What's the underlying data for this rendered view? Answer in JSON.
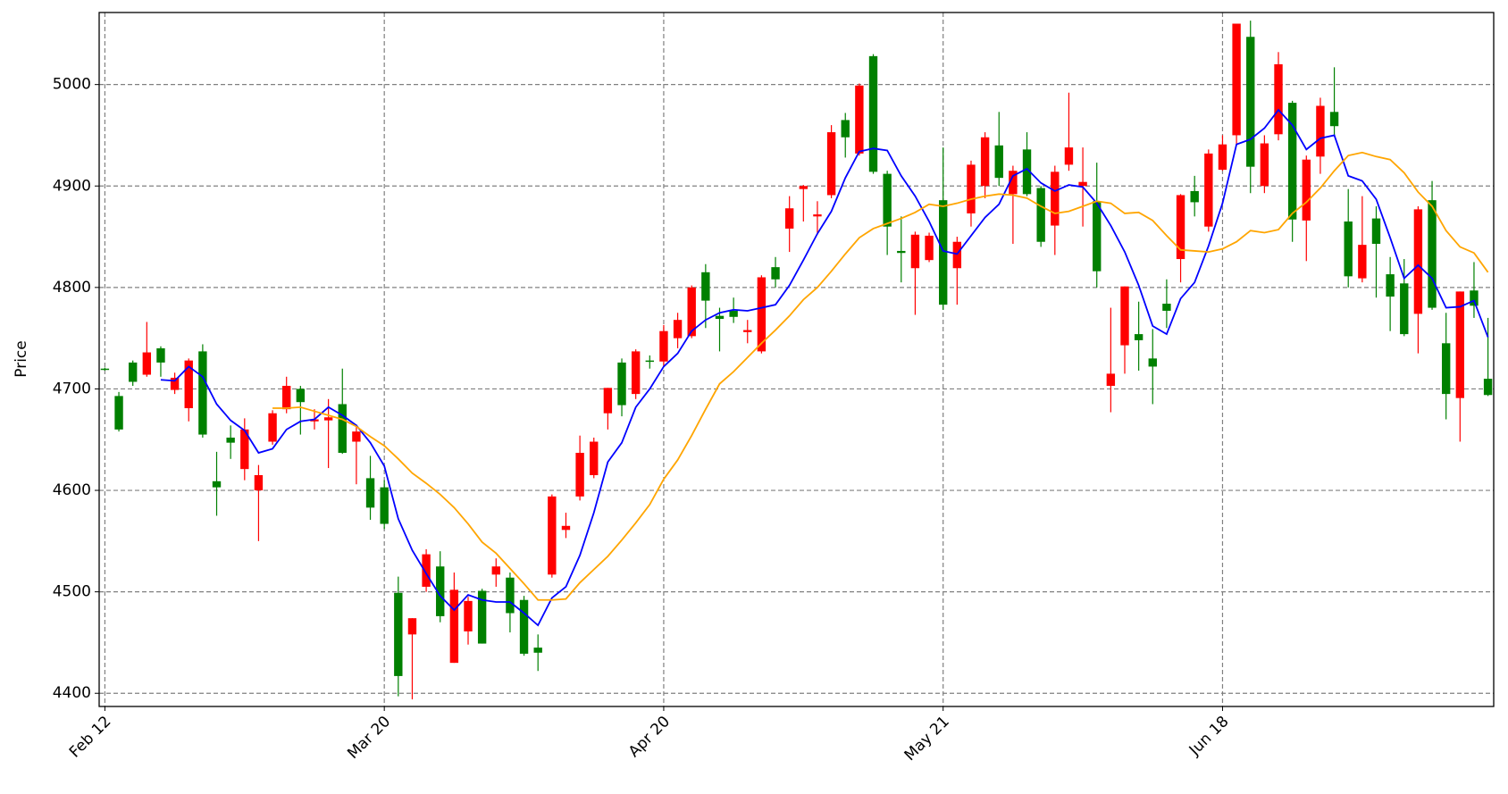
{
  "chart_data": {
    "type": "candlestick",
    "ylabel": "Price",
    "categories": [
      "Feb 12",
      null,
      null,
      null,
      null,
      null,
      null,
      null,
      null,
      null,
      null,
      null,
      null,
      null,
      null,
      null,
      null,
      null,
      null,
      null,
      "Mar 20",
      null,
      null,
      null,
      null,
      null,
      null,
      null,
      null,
      null,
      null,
      null,
      null,
      null,
      null,
      null,
      null,
      null,
      null,
      null,
      "Apr 20",
      null,
      null,
      null,
      null,
      null,
      null,
      null,
      null,
      null,
      null,
      null,
      null,
      null,
      null,
      null,
      null,
      null,
      null,
      null,
      "May 21",
      null,
      null,
      null,
      null,
      null,
      null,
      null,
      null,
      null,
      null,
      null,
      null,
      null,
      null,
      null,
      null,
      null,
      null,
      null,
      "Jun 18",
      null,
      null,
      null,
      null,
      null,
      null,
      null,
      null,
      null,
      null,
      null,
      null,
      null,
      null,
      null,
      null,
      null,
      null,
      null
    ],
    "open": [
      4719,
      4660,
      4707,
      4736,
      4726,
      4711,
      4728,
      4655,
      4603,
      4647,
      4660,
      4615,
      4676,
      4703,
      4687,
      4670,
      4672,
      4637,
      4658,
      4583,
      4567,
      4417,
      4474,
      4537,
      4476,
      4502,
      4491,
      4449,
      4525,
      4479,
      4439,
      4440,
      4594,
      4565,
      4637,
      4648,
      4701,
      4684,
      4737,
      4727,
      4757,
      4768,
      4800,
      4787,
      4769,
      4771,
      4758,
      4810,
      4808,
      4878,
      4900,
      4872,
      4953,
      4948,
      4999,
      4914,
      4860,
      4834,
      4852,
      4851,
      4783,
      4845,
      4921,
      4948,
      4908,
      4915,
      4892,
      4845,
      4914,
      4938,
      4904,
      4816,
      4715,
      4801,
      4748,
      4722,
      4777,
      4891,
      4884,
      4932,
      4941,
      5060,
      4919,
      4942,
      5020,
      4867,
      4926,
      4979,
      4959,
      4811,
      4842,
      4843,
      4791,
      4754,
      4877,
      4780,
      4695,
      4796,
      4782,
      4694
    ],
    "high": [
      4721,
      4697,
      4728,
      4766,
      4742,
      4716,
      4730,
      4744,
      4638,
      4664,
      4671,
      4625,
      4679,
      4712,
      4703,
      4680,
      4690,
      4720,
      4665,
      4634,
      4610,
      4515,
      4474,
      4542,
      4540,
      4519,
      4495,
      4503,
      4533,
      4519,
      4496,
      4458,
      4596,
      4578,
      4654,
      4652,
      4701,
      4730,
      4739,
      4733,
      4763,
      4775,
      4802,
      4823,
      4780,
      4790,
      4768,
      4812,
      4830,
      4890,
      4901,
      4885,
      4960,
      4972,
      5001,
      5030,
      4915,
      4870,
      4855,
      4854,
      4938,
      4850,
      4925,
      4953,
      4973,
      4920,
      4953,
      4900,
      4920,
      4992,
      4938,
      4923,
      4780,
      4801,
      4786,
      4759,
      4808,
      4892,
      4910,
      4936,
      4950,
      5060,
      5063,
      4950,
      5032,
      4984,
      4930,
      4987,
      5017,
      4897,
      4890,
      4880,
      4830,
      4828,
      4880,
      4905,
      4775,
      4796,
      4825,
      4770
    ],
    "low": [
      4718,
      4658,
      4703,
      4712,
      4712,
      4695,
      4668,
      4652,
      4575,
      4631,
      4610,
      4550,
      4645,
      4676,
      4655,
      4660,
      4622,
      4636,
      4606,
      4571,
      4562,
      4397,
      4394,
      4500,
      4470,
      4430,
      4448,
      4449,
      4505,
      4460,
      4437,
      4422,
      4514,
      4553,
      4590,
      4612,
      4660,
      4673,
      4690,
      4720,
      4722,
      4740,
      4750,
      4760,
      4737,
      4765,
      4745,
      4735,
      4800,
      4835,
      4865,
      4852,
      4888,
      4928,
      4930,
      4912,
      4832,
      4805,
      4773,
      4825,
      4778,
      4783,
      4860,
      4888,
      4900,
      4843,
      4890,
      4840,
      4832,
      4915,
      4860,
      4800,
      4677,
      4715,
      4718,
      4685,
      4760,
      4805,
      4870,
      4855,
      4915,
      4940,
      4893,
      4893,
      4945,
      4845,
      4826,
      4912,
      4950,
      4800,
      4805,
      4790,
      4757,
      4752,
      4735,
      4778,
      4670,
      4648,
      4770,
      4693
    ],
    "close": [
      4720,
      4693,
      4726,
      4714,
      4740,
      4699,
      4681,
      4737,
      4609,
      4652,
      4621,
      4600,
      4648,
      4680,
      4700,
      4668,
      4669,
      4685,
      4648,
      4612,
      4603,
      4499,
      4458,
      4505,
      4525,
      4430,
      4461,
      4501,
      4517,
      4514,
      4492,
      4445,
      4517,
      4561,
      4594,
      4615,
      4676,
      4726,
      4695,
      4728,
      4727,
      4750,
      4752,
      4815,
      4772,
      4777,
      4756,
      4737,
      4820,
      4858,
      4897,
      4870,
      4891,
      4965,
      4932,
      5028,
      4912,
      4836,
      4819,
      4827,
      4886,
      4819,
      4873,
      4900,
      4940,
      4892,
      4936,
      4898,
      4861,
      4921,
      4900,
      4885,
      4703,
      4743,
      4754,
      4730,
      4784,
      4828,
      4895,
      4860,
      4916,
      4950,
      5047,
      4900,
      4951,
      4982,
      4866,
      4929,
      4973,
      4865,
      4809,
      4868,
      4813,
      4804,
      4774,
      4886,
      4745,
      4691,
      4797,
      4710
    ],
    "up_color": "green",
    "down_color": "red",
    "lines": [
      {
        "color": "blue",
        "values": [
          null,
          null,
          null,
          null,
          4709,
          4708,
          4722,
          4712,
          4685,
          4669,
          4659,
          4637,
          4641,
          4660,
          4668,
          4670,
          4682,
          4674,
          4664,
          4647,
          4624,
          4572,
          4541,
          4518,
          4496,
          4482,
          4497,
          4492,
          4490,
          4490,
          4479,
          4467,
          4494,
          4505,
          4536,
          4578,
          4628,
          4647,
          4682,
          4700,
          4722,
          4735,
          4757,
          4768,
          4775,
          4778,
          4777,
          4780,
          4783,
          4802,
          4827,
          4853,
          4875,
          4908,
          4934,
          4937,
          4935,
          4910,
          4890,
          4865,
          4836,
          4833,
          4851,
          4869,
          4882,
          4910,
          4917,
          4903,
          4895,
          4901,
          4899,
          4883,
          4861,
          4835,
          4802,
          4762,
          4754,
          4789,
          4805,
          4841,
          4883,
          4941,
          4946,
          4957,
          4975,
          4960,
          4936,
          4947,
          4950,
          4910,
          4905,
          4887,
          4849,
          4809,
          4822,
          4809,
          4780,
          4781,
          4787,
          4751
        ]
      },
      {
        "color": "orange",
        "values": [
          null,
          null,
          null,
          null,
          null,
          null,
          null,
          null,
          null,
          null,
          null,
          null,
          4681,
          4681,
          4682,
          4678,
          4674,
          4670,
          4663,
          4653,
          4644,
          4631,
          4617,
          4607,
          4596,
          4583,
          4567,
          4549,
          4538,
          4523,
          4508,
          4492,
          4492,
          4493,
          4509,
          4522,
          4535,
          4551,
          4568,
          4586,
          4611,
          4630,
          4654,
          4680,
          4705,
          4717,
          4731,
          4745,
          4758,
          4772,
          4788,
          4800,
          4816,
          4833,
          4849,
          4858,
          4863,
          4868,
          4874,
          4882,
          4880,
          4883,
          4887,
          4890,
          4892,
          4891,
          4888,
          4880,
          4873,
          4875,
          4880,
          4885,
          4883,
          4873,
          4874,
          4866,
          4851,
          4837,
          4836,
          4835,
          4838,
          4845,
          4856,
          4854,
          4857,
          4873,
          4884,
          4898,
          4915,
          4930,
          4933,
          4929,
          4926,
          4913,
          4894,
          4880,
          4856,
          4840,
          4834,
          4815
        ]
      }
    ],
    "ylim": [
      4387,
      5071
    ],
    "yticks": [
      4400,
      4500,
      4600,
      4700,
      4800,
      4900,
      5000
    ],
    "grid": true
  }
}
